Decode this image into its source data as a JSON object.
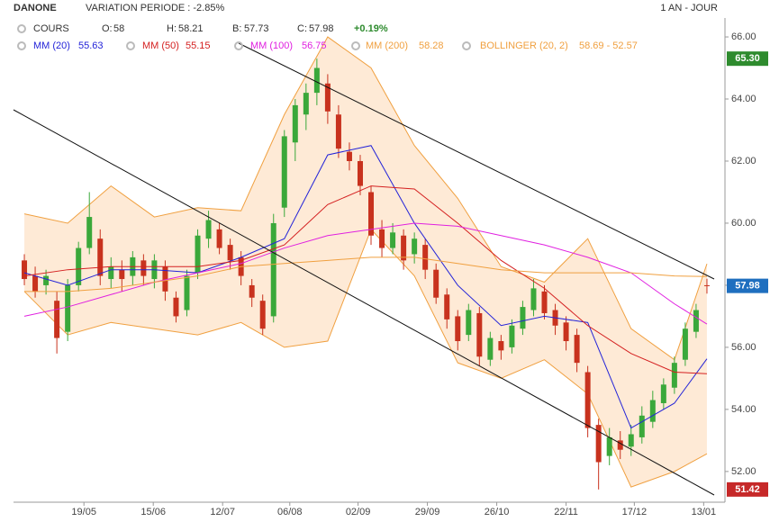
{
  "chart_data": {
    "type": "candlestick",
    "title": "DANONE",
    "subtitle": "VARIATION PERIODE : -2.85%",
    "period": "1 AN - JOUR",
    "price_label": "COURS",
    "ohlc_labels": [
      "O:",
      "H:",
      "B:",
      "C:"
    ],
    "change": "+0.19%",
    "up_color": "#3aa83a",
    "down_color": "#c8321e",
    "candles": [
      [
        58.8,
        59.0,
        58.0,
        58.2
      ],
      [
        58.3,
        58.6,
        57.6,
        57.8
      ],
      [
        58.0,
        58.5,
        57.7,
        58.3
      ],
      [
        57.5,
        57.8,
        55.8,
        56.3
      ],
      [
        56.5,
        58.2,
        56.2,
        58.0
      ],
      [
        58.0,
        59.4,
        57.8,
        59.2
      ],
      [
        59.2,
        61.0,
        59.0,
        60.2
      ],
      [
        59.5,
        59.8,
        58.0,
        58.3
      ],
      [
        58.2,
        58.9,
        57.9,
        58.6
      ],
      [
        58.5,
        58.8,
        57.8,
        58.2
      ],
      [
        58.3,
        59.1,
        58.0,
        58.9
      ],
      [
        58.8,
        59.0,
        58.0,
        58.3
      ],
      [
        58.2,
        59.0,
        57.9,
        58.8
      ],
      [
        58.6,
        58.8,
        57.5,
        57.8
      ],
      [
        57.6,
        57.8,
        56.8,
        57.0
      ],
      [
        57.2,
        58.5,
        57.0,
        58.3
      ],
      [
        58.4,
        59.8,
        58.2,
        59.6
      ],
      [
        59.5,
        60.4,
        59.2,
        60.1
      ],
      [
        59.8,
        60.0,
        59.0,
        59.2
      ],
      [
        59.3,
        59.5,
        58.5,
        58.8
      ],
      [
        58.9,
        59.1,
        58.0,
        58.3
      ],
      [
        58.0,
        58.2,
        57.3,
        57.6
      ],
      [
        57.5,
        57.7,
        56.4,
        56.6
      ],
      [
        57.0,
        60.3,
        56.8,
        60.0
      ],
      [
        60.5,
        63.0,
        60.2,
        62.8
      ],
      [
        62.6,
        64.0,
        62.0,
        63.8
      ],
      [
        63.5,
        64.5,
        63.0,
        64.2
      ],
      [
        64.2,
        65.3,
        63.8,
        65.0
      ],
      [
        64.5,
        64.8,
        63.2,
        63.6
      ],
      [
        63.5,
        63.8,
        62.1,
        62.4
      ],
      [
        62.3,
        62.6,
        61.7,
        62.0
      ],
      [
        62.0,
        62.2,
        60.9,
        61.2
      ],
      [
        61.0,
        61.2,
        59.3,
        59.6
      ],
      [
        59.8,
        60.1,
        58.9,
        59.2
      ],
      [
        59.2,
        60.0,
        59.0,
        59.7
      ],
      [
        59.6,
        59.8,
        58.5,
        58.8
      ],
      [
        59.0,
        59.7,
        58.7,
        59.5
      ],
      [
        59.3,
        59.5,
        58.2,
        58.5
      ],
      [
        58.5,
        58.7,
        57.4,
        57.6
      ],
      [
        57.7,
        57.9,
        56.6,
        56.9
      ],
      [
        57.0,
        57.2,
        55.9,
        56.2
      ],
      [
        56.4,
        57.4,
        56.2,
        57.2
      ],
      [
        57.1,
        57.3,
        55.4,
        55.7
      ],
      [
        55.6,
        56.5,
        55.4,
        56.3
      ],
      [
        56.2,
        56.4,
        55.6,
        55.9
      ],
      [
        56.0,
        56.9,
        55.8,
        56.7
      ],
      [
        56.6,
        57.5,
        56.4,
        57.3
      ],
      [
        57.2,
        58.2,
        57.0,
        57.9
      ],
      [
        57.8,
        58.0,
        56.9,
        57.1
      ],
      [
        57.2,
        57.4,
        56.4,
        56.7
      ],
      [
        56.8,
        57.0,
        55.9,
        56.2
      ],
      [
        56.4,
        56.6,
        55.2,
        55.5
      ],
      [
        55.2,
        55.4,
        53.1,
        53.4
      ],
      [
        53.5,
        53.7,
        51.42,
        52.3
      ],
      [
        52.5,
        53.4,
        52.2,
        53.1
      ],
      [
        53.0,
        53.3,
        52.4,
        52.7
      ],
      [
        52.8,
        53.5,
        52.5,
        53.2
      ],
      [
        53.1,
        54.1,
        52.9,
        53.8
      ],
      [
        53.6,
        54.6,
        53.4,
        54.3
      ],
      [
        54.2,
        55.0,
        54.0,
        54.8
      ],
      [
        54.7,
        55.7,
        54.5,
        55.5
      ],
      [
        55.6,
        56.8,
        55.4,
        56.6
      ],
      [
        56.5,
        57.4,
        56.3,
        57.2
      ],
      [
        58,
        58.21,
        57.73,
        57.98
      ]
    ],
    "indicator_x": [
      0,
      4,
      8,
      12,
      16,
      20,
      24,
      28,
      32,
      36,
      40,
      44,
      48,
      52,
      56,
      60,
      63
    ],
    "series": [
      {
        "name": "MM (20)",
        "color": "#2323d8",
        "values": [
          58.4,
          58.0,
          58.5,
          58.5,
          58.4,
          58.9,
          59.5,
          62.2,
          62.5,
          60.0,
          58.0,
          56.7,
          57.0,
          56.8,
          53.4,
          54.2,
          55.63
        ]
      },
      {
        "name": "MM (50)",
        "color": "#d42020",
        "values": [
          58.3,
          58.5,
          58.6,
          58.6,
          58.6,
          58.8,
          59.3,
          60.6,
          61.2,
          61.1,
          60.0,
          58.8,
          57.9,
          56.7,
          55.8,
          55.2,
          55.15
        ]
      },
      {
        "name": "MM (100)",
        "color": "#e020e0",
        "values": [
          57.0,
          57.3,
          57.7,
          58.1,
          58.4,
          58.7,
          59.2,
          59.6,
          59.8,
          60.0,
          59.9,
          59.6,
          59.3,
          58.9,
          58.4,
          57.4,
          56.75
        ]
      },
      {
        "name": "MM (200)",
        "color": "#f0a040",
        "values": [
          57.8,
          57.8,
          57.9,
          58.1,
          58.3,
          58.6,
          58.7,
          58.8,
          58.9,
          58.9,
          58.7,
          58.5,
          58.4,
          58.4,
          58.4,
          58.3,
          58.28
        ]
      }
    ],
    "band": {
      "name": "BOLLINGER (20, 2)",
      "color": "#f0a040",
      "fill": "#fde3c8",
      "legend_label": "58.69 - 52.57",
      "upper": [
        60.3,
        60.0,
        61.2,
        60.2,
        60.5,
        60.4,
        63.5,
        66.0,
        65.0,
        62.5,
        60.8,
        58.6,
        58.1,
        59.5,
        56.6,
        55.6,
        58.69
      ],
      "lower": [
        57.8,
        56.4,
        56.8,
        56.6,
        56.4,
        56.8,
        56.0,
        56.2,
        59.8,
        58.3,
        55.5,
        55.0,
        55.6,
        54.5,
        51.5,
        52.0,
        52.57
      ]
    },
    "markers": [
      {
        "value": 65.3,
        "label": "65.30",
        "color": "#2e8b2e"
      },
      {
        "value": 57.98,
        "label": "57.98",
        "color": "#1f6fbf"
      },
      {
        "value": 51.42,
        "label": "51.42",
        "color": "#c62828"
      }
    ],
    "xlim": [
      -1,
      64
    ],
    "xticks": [
      {
        "value": 5.5,
        "label": "19/05"
      },
      {
        "value": 11.9,
        "label": "15/06"
      },
      {
        "value": 18.3,
        "label": "12/07"
      },
      {
        "value": 24.5,
        "label": "06/08"
      },
      {
        "value": 30.8,
        "label": "02/09"
      },
      {
        "value": 37.2,
        "label": "29/09"
      },
      {
        "value": 43.6,
        "label": "26/10"
      },
      {
        "value": 50,
        "label": "22/11"
      },
      {
        "value": 56.3,
        "label": "17/12"
      },
      {
        "value": 62.7,
        "label": "13/01"
      }
    ],
    "ylim": [
      51.01,
      66.61
    ],
    "yticks": [
      {
        "value": 52,
        "label": "52.00"
      },
      {
        "value": 54,
        "label": "54.00"
      },
      {
        "value": 56,
        "label": "56.00"
      },
      {
        "value": 58,
        "label": "58.00"
      },
      {
        "value": 60,
        "label": "60.00"
      },
      {
        "value": 62,
        "label": "62.00"
      },
      {
        "value": 64,
        "label": "64.00"
      },
      {
        "value": 66,
        "label": "66.00"
      }
    ]
  }
}
